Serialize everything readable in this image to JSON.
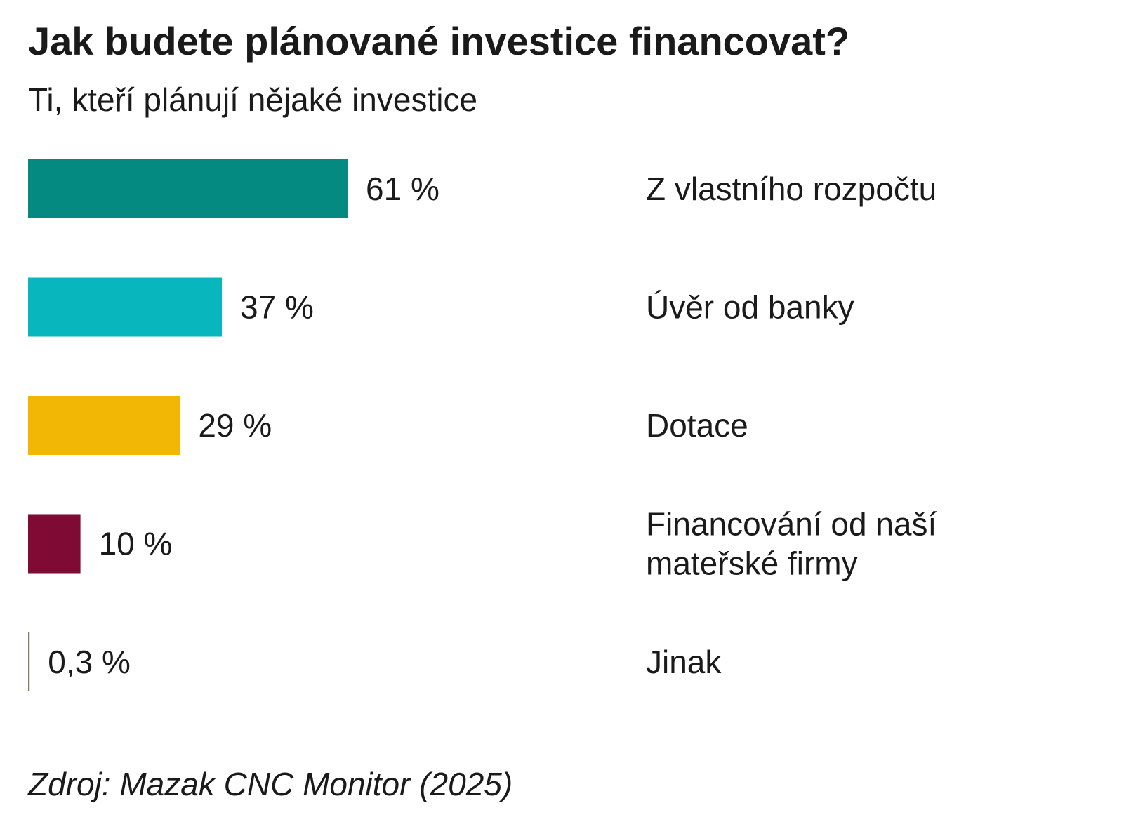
{
  "header": {
    "title": "Jak budete plánované investice financovat?",
    "subtitle": "Ti, kteří plánují nějaké investice"
  },
  "footer": {
    "source": "Zdroj: Mazak CNC Monitor (2025)"
  },
  "chart_data": {
    "type": "bar",
    "orientation": "horizontal",
    "title": "Jak budete plánované investice financovat?",
    "subtitle": "Ti, kteří plánují nějaké investice",
    "xlabel": "",
    "ylabel": "",
    "grid": false,
    "legend": "none",
    "unit": "%",
    "categories": [
      "Z vlastního rozpočtu",
      "Úvěr od banky",
      "Dotace",
      "Financování od naší mateřské firmy",
      "Jinak"
    ],
    "category_lines": [
      [
        "Z vlastního rozpočtu"
      ],
      [
        "Úvěr od banky"
      ],
      [
        "Dotace"
      ],
      [
        "Financování od naší",
        "mateřské firmy"
      ],
      [
        "Jinak"
      ]
    ],
    "values": [
      61,
      37,
      29,
      10,
      0.3
    ],
    "value_labels": [
      "61 %",
      "37 %",
      "29 %",
      "10 %",
      "0,3 %"
    ],
    "colors": [
      "#048a80",
      "#07b7bd",
      "#f2b705",
      "#7f0a33",
      "#8c7b6b"
    ]
  }
}
